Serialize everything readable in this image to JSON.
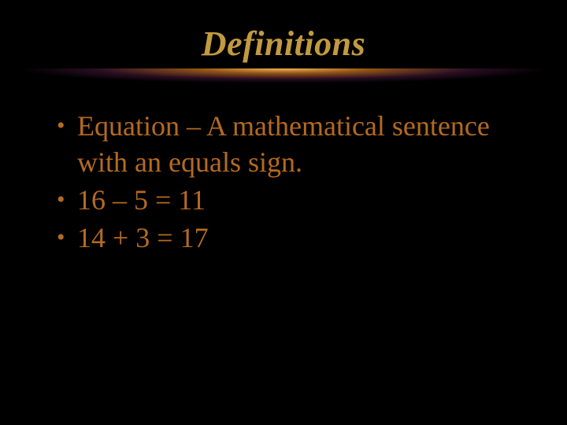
{
  "slide": {
    "background_color": "#000000",
    "title": {
      "text": "Definitions",
      "color": "#c29a3f",
      "font_style": "italic",
      "font_size_pt": 44,
      "font_family": "Times New Roman"
    },
    "underline": {
      "gradient_colors": [
        "#ffbe5a",
        "#d2781e",
        "#782864",
        "#000000"
      ]
    },
    "bullets": {
      "color": "#b46a1f",
      "bullet_color": "#b46a1f",
      "font_size_pt": 36,
      "font_family": "Times New Roman",
      "items": [
        "Equation – A mathematical sentence with an equals sign.",
        "16 – 5 = 11",
        "14 + 3 = 17"
      ]
    }
  }
}
